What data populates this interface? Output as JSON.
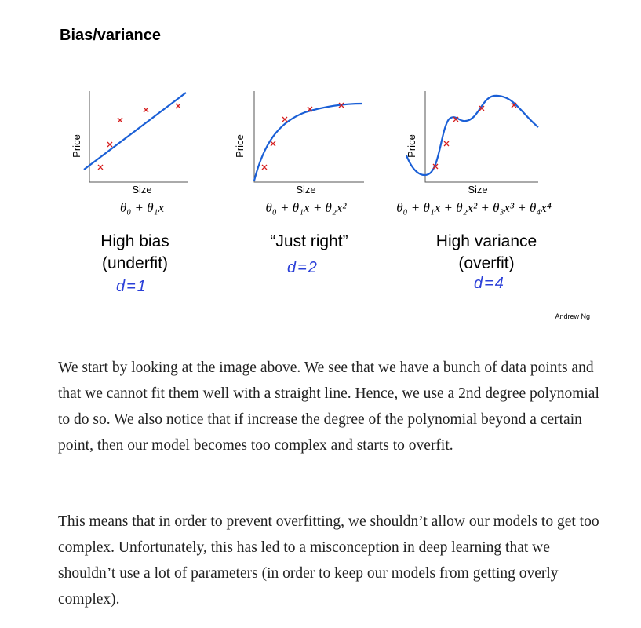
{
  "slide": {
    "title": "Bias/variance",
    "credit": "Andrew Ng",
    "panels": [
      {
        "ylabel": "Price",
        "xlabel": "Size",
        "formula": "θ₀ + θ₁x",
        "caption_line1": "High bias",
        "caption_line2": "(underfit)",
        "note": "d=1"
      },
      {
        "ylabel": "Price",
        "xlabel": "Size",
        "formula": "θ₀ + θ₁x + θ₂x²",
        "caption_line1": "“Just right”",
        "caption_line2": "",
        "note": "d=2"
      },
      {
        "ylabel": "Price",
        "xlabel": "Size",
        "formula": "θ₀ + θ₁x + θ₂x² + θ₃x³ + θ₄x⁴",
        "caption_line1": "High variance",
        "caption_line2": "(overfit)",
        "note": "d=4"
      }
    ],
    "colors": {
      "fit_curve": "#1a5fd6",
      "data_points": "#d62020",
      "handwriting": "#2a3fd8"
    }
  },
  "article": {
    "paragraphs": [
      "We start by looking at the image above. We see that we have a bunch of data points and that we cannot fit them well with a straight line. Hence, we use a 2nd degree polynomial to do so. We also notice that if increase the degree of the polynomial beyond a certain point, then our model becomes too complex and starts to overfit.",
      "This means that in order to prevent overfitting, we shouldn’t allow our models to get too complex. Unfortunately, this has led to a misconception in deep learning that we shouldn’t use a lot of parameters (in order to keep our models from getting overly complex)."
    ]
  }
}
